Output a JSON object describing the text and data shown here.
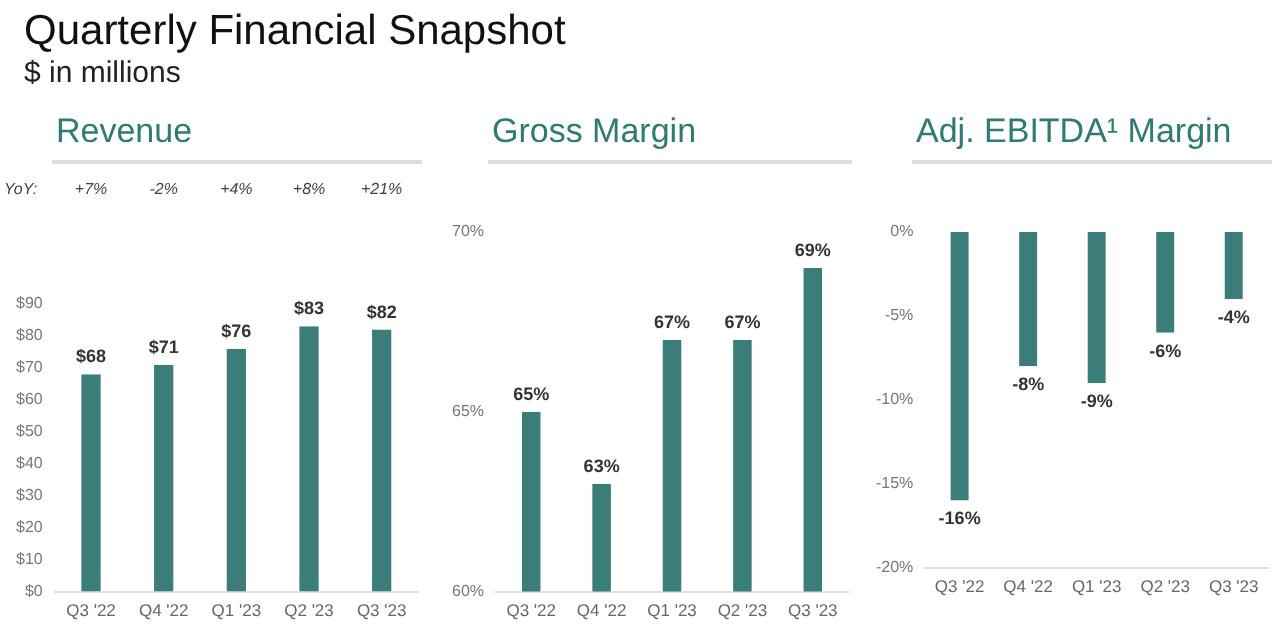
{
  "chart_data": [
    {
      "type": "other",
      "title": "Quarterly Financial Snapshot",
      "subtitle": "$ in millions"
    },
    {
      "type": "bar",
      "title": "Revenue",
      "categories": [
        "Q3 '22",
        "Q4 '22",
        "Q1 '23",
        "Q2 '23",
        "Q3 '23"
      ],
      "values": [
        68,
        71,
        76,
        83,
        82
      ],
      "value_labels": [
        "$68",
        "$71",
        "$76",
        "$83",
        "$82"
      ],
      "color": "#3b7e79",
      "ylim": [
        0,
        90
      ],
      "yticks": [
        {
          "value": 0,
          "label": "$0"
        },
        {
          "value": 10,
          "label": "$10"
        },
        {
          "value": 20,
          "label": "$20"
        },
        {
          "value": 30,
          "label": "$30"
        },
        {
          "value": 40,
          "label": "$40"
        },
        {
          "value": 50,
          "label": "$50"
        },
        {
          "value": 60,
          "label": "$60"
        },
        {
          "value": 70,
          "label": "$70"
        },
        {
          "value": 80,
          "label": "$80"
        },
        {
          "value": 90,
          "label": "$90"
        }
      ],
      "grid": false,
      "legend": false,
      "annotations": [
        "YoY:",
        "+7%",
        "-2%",
        "+4%",
        "+8%",
        "+21%"
      ]
    },
    {
      "type": "bar",
      "title": "Gross Margin",
      "categories": [
        "Q3 '22",
        "Q4 '22",
        "Q1 '23",
        "Q2 '23",
        "Q3 '23"
      ],
      "values": [
        65,
        63,
        67,
        67,
        69
      ],
      "value_labels": [
        "65%",
        "63%",
        "67%",
        "67%",
        "69%"
      ],
      "color": "#3b7e79",
      "ylim": [
        60,
        70
      ],
      "yticks": [
        {
          "value": 60,
          "label": "60%"
        },
        {
          "value": 65,
          "label": "65%"
        },
        {
          "value": 70,
          "label": "70%"
        }
      ],
      "grid": false,
      "legend": false
    },
    {
      "type": "bar",
      "title": "Adj. EBITDA¹ Margin",
      "categories": [
        "Q3 '22",
        "Q4 '22",
        "Q1 '23",
        "Q2 '23",
        "Q3 '23"
      ],
      "values": [
        -16,
        -8,
        -9,
        -6,
        -4
      ],
      "value_labels": [
        "-16%",
        "-8%",
        "-9%",
        "-6%",
        "-4%"
      ],
      "color": "#3b7e79",
      "ylim": [
        -20,
        0
      ],
      "yticks": [
        {
          "value": -20,
          "label": "-20%"
        },
        {
          "value": -15,
          "label": "-15%"
        },
        {
          "value": -10,
          "label": "-10%"
        },
        {
          "value": -5,
          "label": "-5%"
        },
        {
          "value": 0,
          "label": "0%"
        }
      ],
      "grid": false,
      "legend": false
    }
  ]
}
